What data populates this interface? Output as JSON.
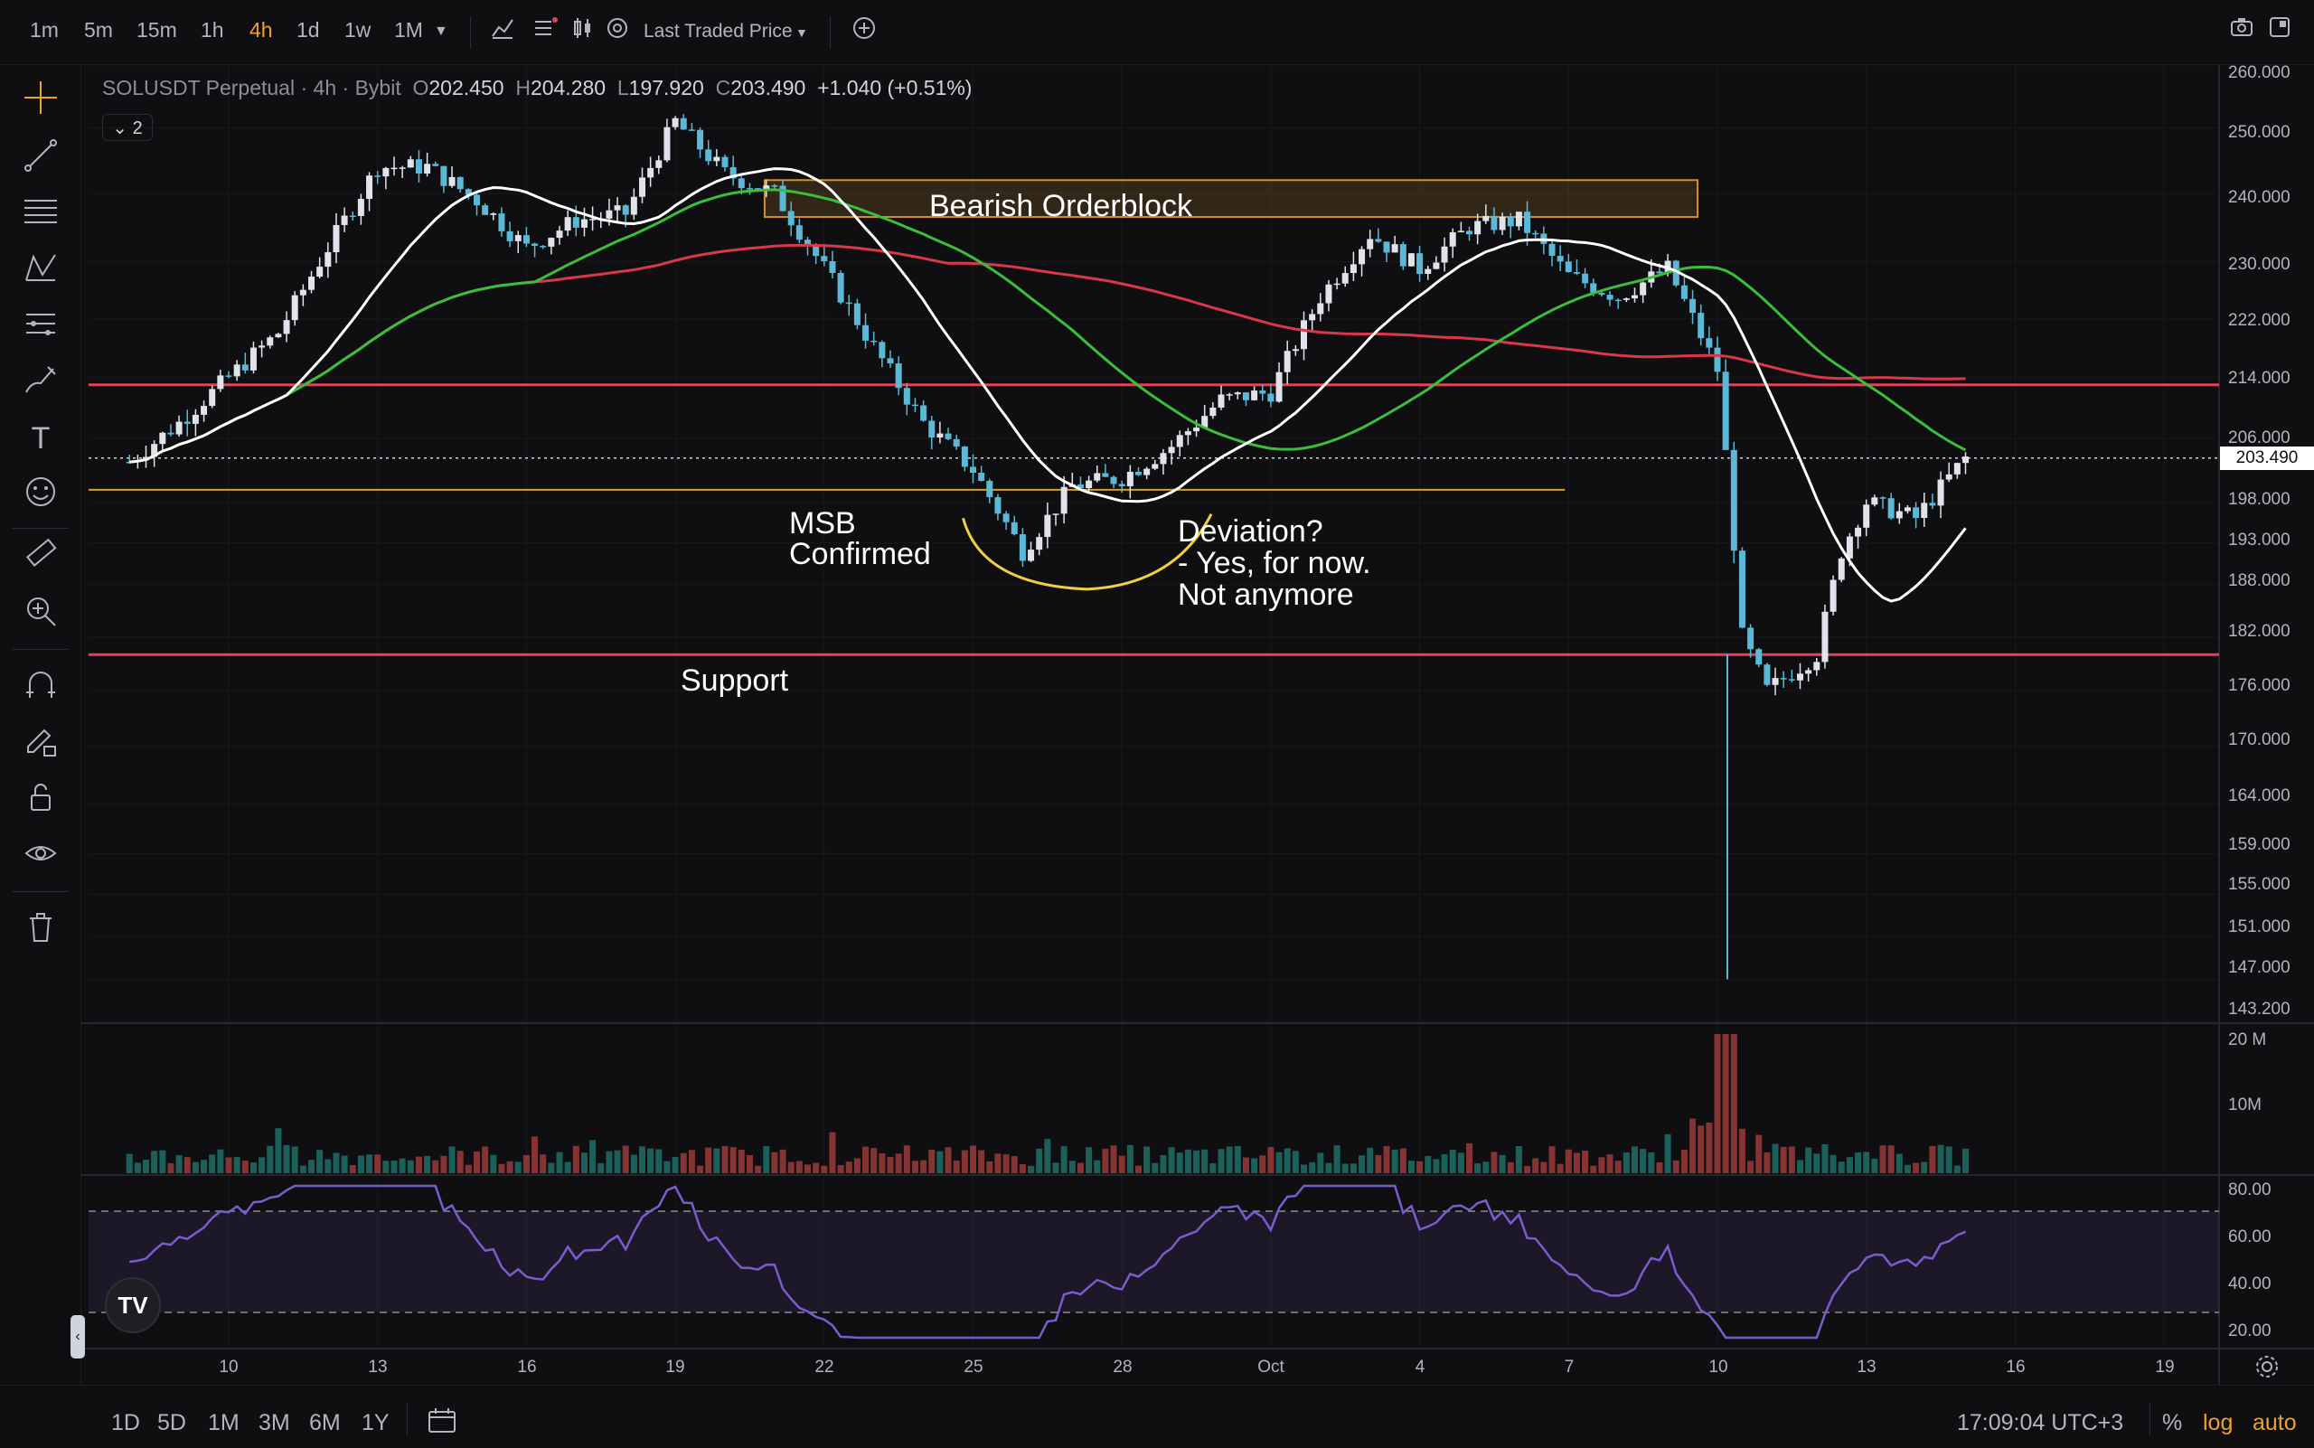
{
  "toolbar": {
    "timeframes": [
      "1m",
      "5m",
      "15m",
      "1h",
      "4h",
      "1d",
      "1w",
      "1M"
    ],
    "active_timeframe": "4h",
    "price_source": "Last Traded Price"
  },
  "legend": {
    "symbol": "SOLUSDT Perpetual",
    "interval": "4h",
    "exchange": "Bybit",
    "open_label": "O",
    "open": "202.450",
    "high_label": "H",
    "high": "204.280",
    "low_label": "L",
    "low": "197.920",
    "close_label": "C",
    "close": "203.490",
    "change": "+1.040 (+0.51%)",
    "collapsed_count": "2"
  },
  "annotations": {
    "orderblock": "Bearish Orderblock",
    "msb_line1": "MSB",
    "msb_line2": "Confirmed",
    "deviation_line1": "Deviation?",
    "deviation_line2": "- Yes, for now.",
    "deviation_line3": "Not anymore",
    "support": "Support"
  },
  "price_axis": {
    "labels": [
      "260.000",
      "250.000",
      "240.000",
      "230.000",
      "222.000",
      "214.000",
      "206.000",
      "198.000",
      "193.000",
      "188.000",
      "182.000",
      "176.000",
      "170.000",
      "164.000",
      "159.000",
      "155.000",
      "151.000",
      "147.000",
      "143.200"
    ],
    "current_price": "203.490",
    "volume_labels": [
      "20 M",
      "10M"
    ],
    "rsi_labels": [
      "80.00",
      "60.00",
      "40.00",
      "20.00"
    ]
  },
  "time_axis": {
    "labels": [
      "10",
      "13",
      "16",
      "19",
      "22",
      "25",
      "28",
      "Oct",
      "4",
      "7",
      "10",
      "13",
      "16",
      "19"
    ]
  },
  "bottom": {
    "ranges": [
      "1D",
      "5D",
      "1M",
      "3M",
      "6M",
      "1Y"
    ],
    "clock": "17:09:04 UTC+3",
    "percent": "%",
    "log": "log",
    "auto": "auto"
  },
  "colors": {
    "background": "#0f0f12",
    "bull": "#e0e3eb",
    "bear": "#5bb8d6",
    "ma_fast": "#ffffff",
    "ma_mid": "#3bbf3b",
    "ma_slow": "#d9384a",
    "resistance_line": "#e0435a",
    "orderblock_border": "#d4902a",
    "msb_line": "#d4a020",
    "curve": "#f0d040",
    "rsi": "#7b5ccf",
    "accent": "#f0a030"
  },
  "chart_data": {
    "type": "candlestick",
    "symbol": "SOLUSDT Perpetual",
    "interval": "4h",
    "y_scale": "log",
    "ylim": [
      143.2,
      260
    ],
    "x_ticks": [
      "10",
      "13",
      "16",
      "19",
      "22",
      "25",
      "28",
      "Oct",
      "4",
      "7",
      "10",
      "13",
      "16",
      "19"
    ],
    "last": {
      "open": 202.45,
      "high": 204.28,
      "low": 197.92,
      "close": 203.49
    },
    "price_path": [
      [
        "Sep 8",
        203
      ],
      [
        "Sep 9",
        208
      ],
      [
        "Sep 10",
        214
      ],
      [
        "Sep 11",
        220
      ],
      [
        "Sep 12",
        232
      ],
      [
        "Sep 13",
        244
      ],
      [
        "Sep 14",
        244
      ],
      [
        "Sep 15",
        239
      ],
      [
        "Sep 16",
        232
      ],
      [
        "Sep 17",
        236
      ],
      [
        "Sep 18",
        237
      ],
      [
        "Sep 19",
        251
      ],
      [
        "Sep 20",
        243
      ],
      [
        "Sep 21",
        240
      ],
      [
        "Sep 22",
        229
      ],
      [
        "Sep 23",
        218
      ],
      [
        "Sep 24",
        208
      ],
      [
        "Sep 25",
        202
      ],
      [
        "Sep 26",
        192
      ],
      [
        "Sep 27",
        200
      ],
      [
        "Sep 28",
        201
      ],
      [
        "Sep 29",
        205
      ],
      [
        "Sep 30",
        211
      ],
      [
        "Oct 1",
        212
      ],
      [
        "Oct 2",
        225
      ],
      [
        "Oct 3",
        234
      ],
      [
        "Oct 4",
        229
      ],
      [
        "Oct 5",
        235
      ],
      [
        "Oct 6",
        236
      ],
      [
        "Oct 7",
        228
      ],
      [
        "Oct 8",
        225
      ],
      [
        "Oct 9",
        229
      ],
      [
        "Oct 10",
        215
      ],
      [
        "Oct 10.5",
        182
      ],
      [
        "Oct 11",
        176
      ],
      [
        "Oct 12",
        180
      ],
      [
        "Oct 12.5",
        192
      ],
      [
        "Oct 13",
        198
      ],
      [
        "Oct 14",
        196
      ],
      [
        "Oct 15",
        203.49
      ]
    ],
    "spike_low": 147,
    "lines": {
      "resistance": 213,
      "support": 180,
      "msb": 199.5
    },
    "orderblock": [
      236.5,
      242
    ],
    "volume_spike_date": "Oct 10",
    "rsi_range": [
      20,
      80
    ],
    "rsi_bands": [
      30,
      70
    ]
  }
}
